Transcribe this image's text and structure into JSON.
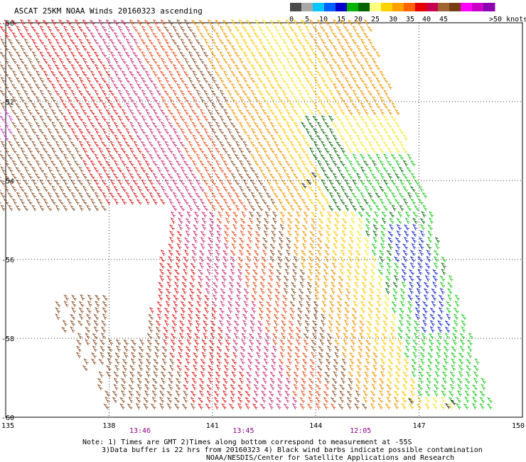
{
  "title": "ASCAT 25KM NOAA Winds 20160323 ascending",
  "legend": {
    "labels": [
      "0",
      "5",
      "10",
      "15",
      "20",
      "25",
      "30",
      "35",
      "40",
      "45",
      ">50 knots"
    ],
    "colors": [
      "#4a4a4a",
      "#a8a8a8",
      "#00c8ff",
      "#0060ff",
      "#0000cc",
      "#00b400",
      "#006400",
      "#ffff80",
      "#ffd200",
      "#ffa000",
      "#ff6400",
      "#e60000",
      "#c80050",
      "#a06432",
      "#783c14",
      "#ff00ff",
      "#c800c8",
      "#8c00b4"
    ]
  },
  "axes": {
    "x_ticks": [
      "135",
      "138",
      "141",
      "144",
      "147",
      "150"
    ],
    "y_ticks": [
      "-50",
      "-52",
      "-54",
      "-56",
      "-58",
      "-60"
    ]
  },
  "times": [
    {
      "label": "13:46",
      "lon": 138.9
    },
    {
      "label": "13:45",
      "lon": 141.9
    },
    {
      "label": "12:05",
      "lon": 145.3
    }
  ],
  "time_color": "#8b008b",
  "notes": [
    "Note: 1) Times are GMT 2)Times along bottom correspond to measurement at -55S",
    "3)Data buffer is 22 hrs from 20160323 4) Black wind barbs indicate possible contamination",
    "NOAA/NESDIS/Center for Satellite Applications and Research"
  ],
  "swath": {
    "lon_range": [
      135,
      150
    ],
    "lat_range": [
      -60,
      -50
    ],
    "bands": [
      {
        "name": "violet",
        "color": "#cc44cc",
        "knots": 45
      },
      {
        "name": "magenta",
        "color": "#c8326e",
        "knots": 40
      },
      {
        "name": "red",
        "color": "#dc1e1e",
        "knots": 35
      },
      {
        "name": "red-orange",
        "color": "#e6501e",
        "knots": 33
      },
      {
        "name": "brown",
        "color": "#8c5028",
        "knots": 38
      },
      {
        "name": "orange",
        "color": "#f09600",
        "knots": 28
      },
      {
        "name": "yellow-orange",
        "color": "#ffc800",
        "knots": 25
      },
      {
        "name": "yellow",
        "color": "#f5e632",
        "knots": 22
      },
      {
        "name": "green",
        "color": "#1ec81e",
        "knots": 18
      },
      {
        "name": "dark-green",
        "color": "#0a6e0a",
        "knots": 17
      },
      {
        "name": "blue",
        "color": "#1428c8",
        "knots": 14
      },
      {
        "name": "black",
        "color": "#222222",
        "knots": 20
      }
    ]
  }
}
